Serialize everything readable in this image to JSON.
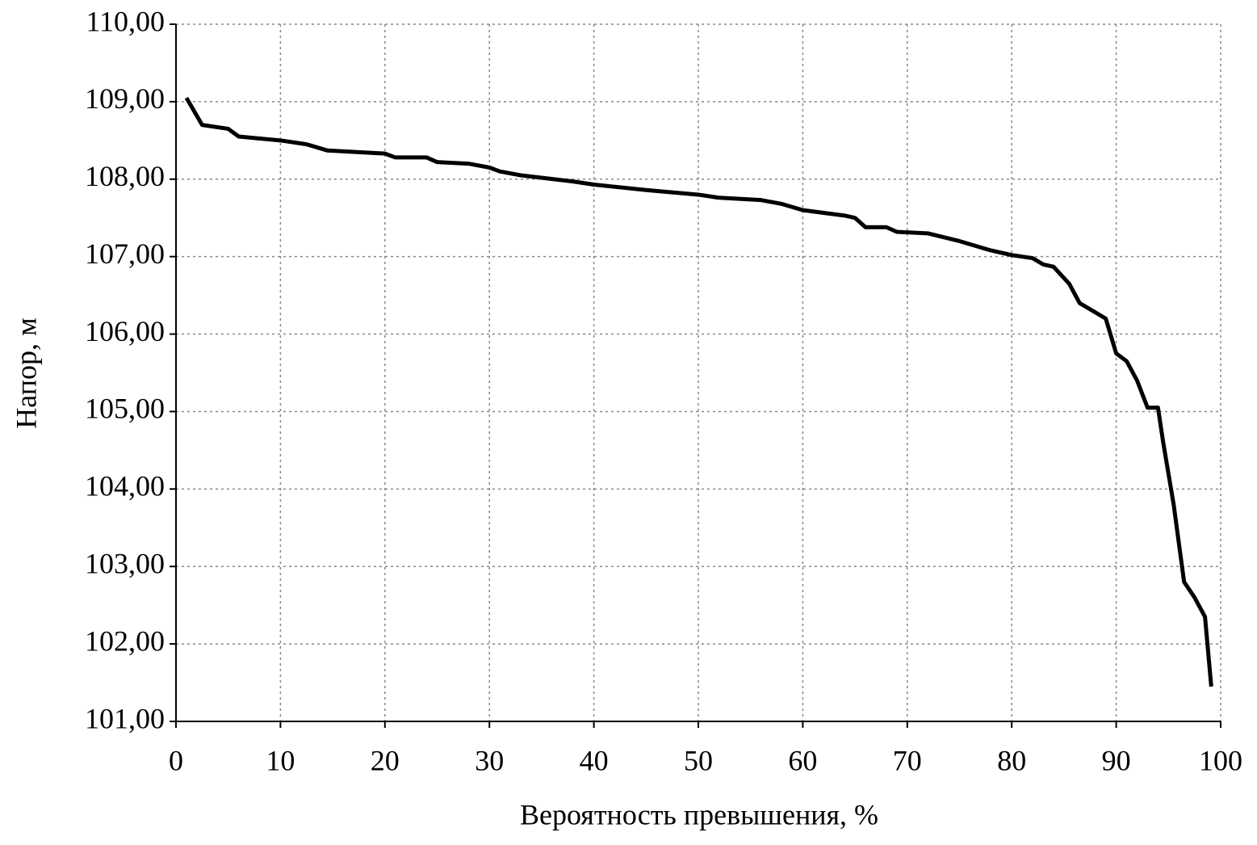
{
  "chart_data": {
    "type": "line",
    "x_label": "Вероятность превышения, %",
    "y_label": "Напор, м",
    "xlim": [
      0,
      100
    ],
    "xticks": [
      0,
      10,
      20,
      30,
      40,
      50,
      60,
      70,
      80,
      90,
      100
    ],
    "ylim": [
      101,
      110
    ],
    "yticks": [
      {
        "value": 101,
        "label": "101,00"
      },
      {
        "value": 102,
        "label": "102,00"
      },
      {
        "value": 103,
        "label": "103,00"
      },
      {
        "value": 104,
        "label": "104,00"
      },
      {
        "value": 105,
        "label": "105,00"
      },
      {
        "value": 106,
        "label": "106,00"
      },
      {
        "value": 107,
        "label": "107,00"
      },
      {
        "value": 108,
        "label": "108,00"
      },
      {
        "value": 109,
        "label": "109,00"
      },
      {
        "value": 110,
        "label": "110,00"
      }
    ],
    "grid": true,
    "x": [
      1,
      2.5,
      5,
      6,
      10,
      12.5,
      14.5,
      20,
      21,
      24,
      25,
      28,
      30,
      31,
      33,
      38,
      40,
      45,
      50,
      52,
      56,
      58,
      60,
      64,
      65,
      66,
      68,
      69,
      72,
      75,
      78,
      80,
      82,
      83,
      84,
      85.5,
      86.5,
      89,
      90,
      91,
      92,
      93,
      94,
      94.5,
      95.5,
      96.5,
      97.5,
      98.5,
      99.1
    ],
    "series": [
      {
        "color": "#000000",
        "values": [
          109.05,
          108.7,
          108.65,
          108.55,
          108.5,
          108.45,
          108.37,
          108.33,
          108.28,
          108.28,
          108.22,
          108.2,
          108.15,
          108.1,
          108.05,
          107.97,
          107.93,
          107.86,
          107.8,
          107.76,
          107.73,
          107.68,
          107.6,
          107.53,
          107.5,
          107.38,
          107.38,
          107.32,
          107.3,
          107.2,
          107.08,
          107.02,
          106.98,
          106.9,
          106.87,
          106.65,
          106.4,
          106.2,
          105.75,
          105.65,
          105.4,
          105.05,
          105.05,
          104.6,
          103.8,
          102.8,
          102.6,
          102.35,
          101.45
        ]
      }
    ]
  }
}
